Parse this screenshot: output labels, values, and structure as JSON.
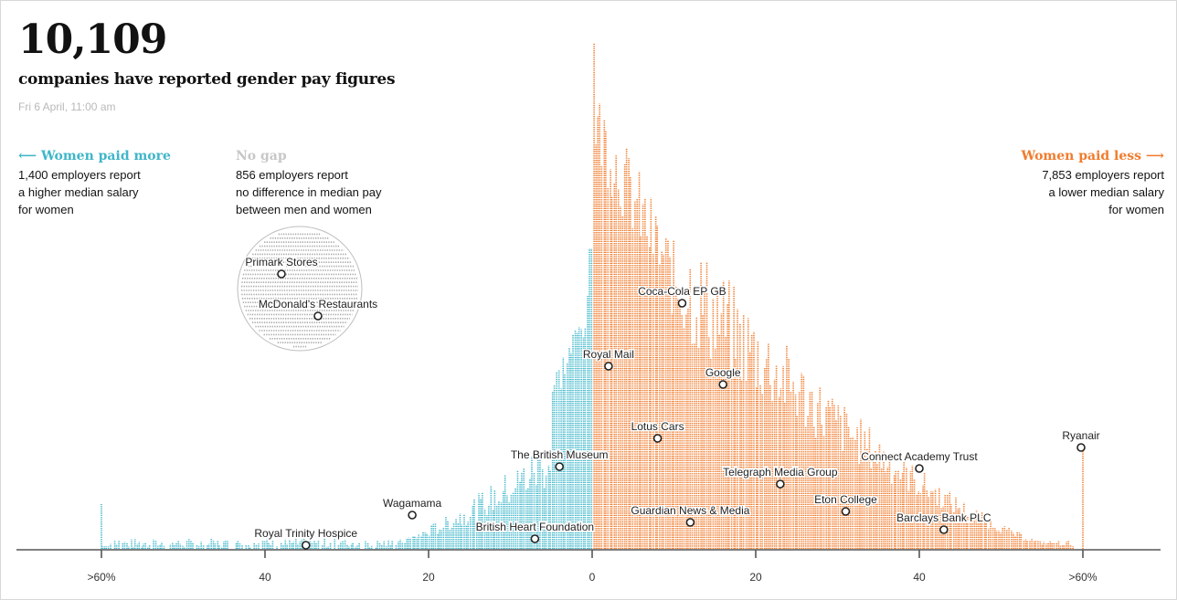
{
  "header": {
    "count": "10,109",
    "subtitle": "companies have reported gender pay figures",
    "timestamp": "Fri 6 April, 11:00 am"
  },
  "legend": {
    "women_paid_more": {
      "heading": "Women paid more",
      "line1": "1,400 employers report",
      "line2": "a higher median salary",
      "line3": "for women"
    },
    "no_gap": {
      "heading": "No gap",
      "line1": "856 employers report",
      "line2": "no difference in median pay",
      "line3": "between men and women"
    },
    "women_paid_less": {
      "heading": "Women paid less",
      "line1": "7,853 employers report",
      "line2": "a lower median salary",
      "line3": "for women"
    }
  },
  "colors": {
    "women_paid_more": "#3fb6c9",
    "women_paid_less": "#f07c2e",
    "no_gap": "#a8a8a8",
    "axis": "#555555"
  },
  "chart_data": {
    "type": "scatter",
    "xlabel": "",
    "ylabel": "",
    "x_ticks": [
      ">60%",
      "40",
      "20",
      "0",
      "20",
      "40",
      ">60%"
    ],
    "x_tick_values": [
      -60,
      -40,
      -20,
      0,
      20,
      40,
      60
    ],
    "xlim": [
      -60,
      60
    ],
    "groups": [
      {
        "name": "Women paid more",
        "count": 1400
      },
      {
        "name": "No gap",
        "count": 856
      },
      {
        "name": "Women paid less",
        "count": 7853
      }
    ],
    "labelled_companies": [
      {
        "name": "Primark Stores",
        "gap": 0,
        "group": "No gap"
      },
      {
        "name": "McDonald's Restaurants",
        "gap": 0,
        "group": "No gap"
      },
      {
        "name": "Royal Trinity Hospice",
        "gap": -35
      },
      {
        "name": "Wagamama",
        "gap": -22
      },
      {
        "name": "British Heart Foundation",
        "gap": -7
      },
      {
        "name": "The British Museum",
        "gap": -4
      },
      {
        "name": "Royal Mail",
        "gap": 2
      },
      {
        "name": "Coca-Cola EP GB",
        "gap": 11
      },
      {
        "name": "Google",
        "gap": 16
      },
      {
        "name": "Lotus Cars",
        "gap": 8
      },
      {
        "name": "Guardian News & Media",
        "gap": 12
      },
      {
        "name": "Telegraph Media Group",
        "gap": 23
      },
      {
        "name": "Eton College",
        "gap": 31
      },
      {
        "name": "Connect Academy Trust",
        "gap": 40
      },
      {
        "name": "Barclays Bank PLC",
        "gap": 43
      },
      {
        "name": "Ryanair",
        "gap": 60
      }
    ]
  }
}
